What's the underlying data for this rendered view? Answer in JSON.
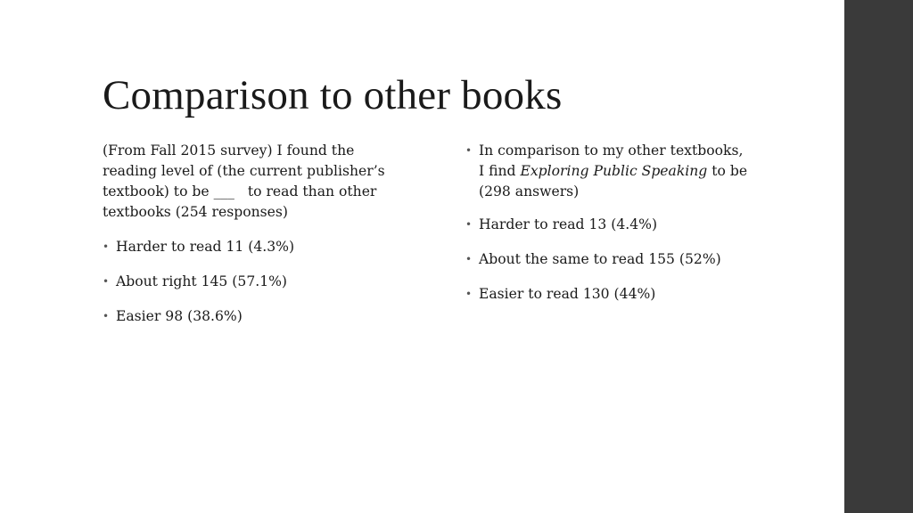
{
  "slide": {
    "title": "Comparison to other books"
  },
  "left": {
    "intro_line1": "(From Fall 2015 survey) I found the",
    "intro_line2": "reading level of (the current publisher’s",
    "intro_line3_a": "textbook) to be ___",
    "intro_line3_b": "   to read than other",
    "intro_line4": "textbooks (254 responses)",
    "items": [
      {
        "label": "Harder to read 11 (4.3%)"
      },
      {
        "label": "About right 145 (57.1%)"
      },
      {
        "label": "Easier  98 (38.6%)"
      }
    ]
  },
  "right": {
    "intro_line1": "In comparison to my other textbooks,",
    "intro_line2_a": "I find ",
    "intro_line2_book": "Exploring Public Speaking",
    "intro_line2_b": " to be",
    "intro_line3": "(298 answers)",
    "items": [
      {
        "label": "Harder to read  13  (4.4%)"
      },
      {
        "label": "About the same to read  155 (52%)"
      },
      {
        "label": "Easier to read  130 (44%)"
      }
    ]
  },
  "bullet_glyph": "•"
}
